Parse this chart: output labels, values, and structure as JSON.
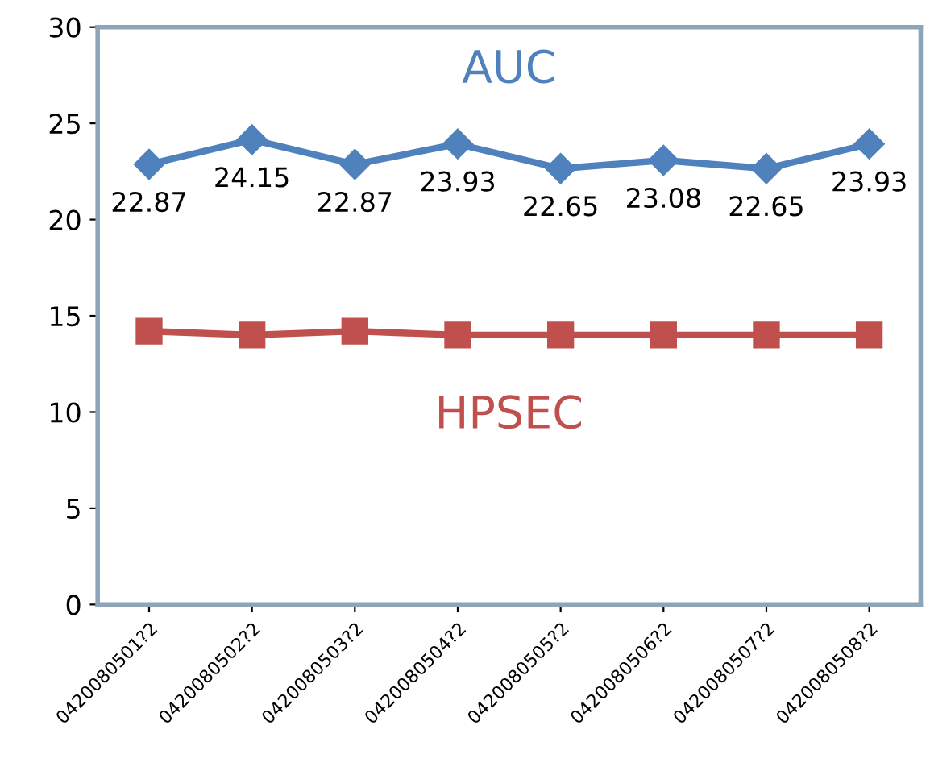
{
  "chart_data": {
    "type": "line",
    "categories": [
      "0420080501?2",
      "0420080502?2",
      "0420080503?2",
      "0420080504?2",
      "0420080505?2",
      "0420080506?2",
      "0420080507?2",
      "0420080508?2"
    ],
    "series": [
      {
        "name": "AUC",
        "color": "#4f81bd",
        "marker": "diamond",
        "values": [
          22.87,
          24.15,
          22.87,
          23.93,
          22.65,
          23.08,
          22.65,
          23.93
        ],
        "value_labels": [
          "22.87",
          "24.15",
          "22.87",
          "23.93",
          "22.65",
          "23.08",
          "22.65",
          "23.93"
        ]
      },
      {
        "name": "HPSEC",
        "color": "#c0504d",
        "marker": "square",
        "values": [
          14.2,
          14.0,
          14.2,
          14.0,
          14.0,
          14.0,
          14.0,
          14.0
        ]
      }
    ],
    "ylim": [
      0,
      30
    ],
    "yticks": [
      0,
      5,
      10,
      15,
      20,
      25,
      30
    ],
    "grid": false,
    "legend": false
  }
}
